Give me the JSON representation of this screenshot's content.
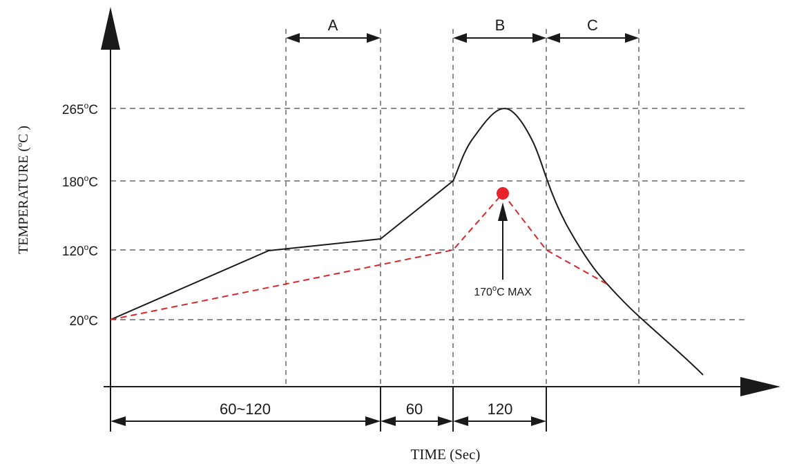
{
  "y_axis": {
    "label_main": "TEMPERATURE (",
    "label_sup": "o",
    "label_tail": "C )",
    "ticks": [
      {
        "num": "265",
        "sup": "o",
        "unit": "C",
        "value": 265
      },
      {
        "num": "180",
        "sup": "o",
        "unit": "C",
        "value": 180
      },
      {
        "num": "120",
        "sup": "o",
        "unit": "C",
        "value": 120
      },
      {
        "num": "20",
        "sup": "o",
        "unit": "C",
        "value": 20
      }
    ]
  },
  "x_axis": {
    "label": "TIME (Sec)",
    "durations": [
      {
        "label": "60~120"
      },
      {
        "label": "60"
      },
      {
        "label": "120"
      }
    ]
  },
  "zones": [
    {
      "label": "A"
    },
    {
      "label": "B"
    },
    {
      "label": "C"
    }
  ],
  "max_callout": {
    "num": "170",
    "sup": "o",
    "rest": "C MAX",
    "value": 170
  },
  "colors": {
    "ink": "#1a1a1a",
    "red": "#e8232a",
    "dashed_red": "#d9262b"
  }
}
